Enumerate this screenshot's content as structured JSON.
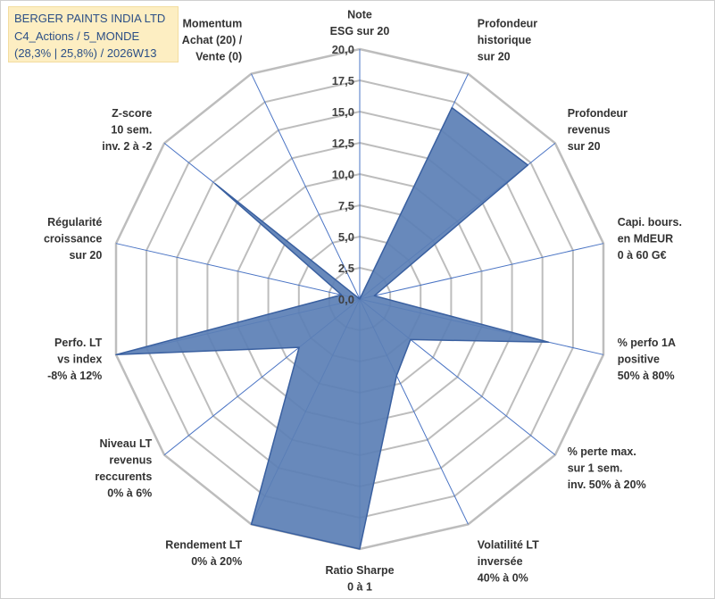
{
  "title_box": {
    "line1": "BERGER PAINTS INDIA LTD",
    "line2": "C4_Actions / 5_MONDE",
    "line3": "(28,3% | 25,8%) / 2026W13"
  },
  "colors": {
    "fill": "#5b7fb5",
    "stroke": "#3a60a0",
    "grid": "#bdbdbd",
    "spoke": "#4a74c4"
  },
  "chart_data": {
    "type": "radar",
    "title": "BERGER PAINTS INDIA LTD",
    "rmin": 0,
    "rmax": 20,
    "tick_step": 2.5,
    "tick_labels": [
      "0,0",
      "2,5",
      "5,0",
      "7,5",
      "10,0",
      "12,5",
      "15,0",
      "17,5",
      "20,0"
    ],
    "axes": [
      {
        "label": [
          "Note",
          "ESG sur 20"
        ],
        "value": 0
      },
      {
        "label": [
          "Profondeur",
          "historique",
          "sur 20"
        ],
        "value": 17
      },
      {
        "label": [
          "Profondeur",
          "revenus",
          "sur 20"
        ],
        "value": 17.2
      },
      {
        "label": [
          "Capi. bours.",
          "en MdEUR",
          "0 à 60 G€"
        ],
        "value": 1.2
      },
      {
        "label": [
          "% perfo 1A",
          "positive",
          "50% à 80%"
        ],
        "value": 15.5
      },
      {
        "label": [
          "% perte max.",
          "sur 1 sem.",
          "inv. 50% à 20%"
        ],
        "value": 5.2
      },
      {
        "label": [
          "Volatilité LT",
          "inversée",
          "40% à 0%"
        ],
        "value": 6.8
      },
      {
        "label": [
          "Ratio Sharpe",
          "0 à 1"
        ],
        "value": 20
      },
      {
        "label": [
          "Rendement LT",
          "0% à 20%"
        ],
        "value": 20
      },
      {
        "label": [
          "Niveau LT",
          "revenus",
          "reccurents",
          "0% à 6%"
        ],
        "value": 6.2
      },
      {
        "label": [
          "Perfo. LT",
          "vs index",
          "-8% à 12%"
        ],
        "value": 20
      },
      {
        "label": [
          "Régularité",
          "croissance",
          "sur 20"
        ],
        "value": 1.5
      },
      {
        "label": [
          "Z-score",
          "10 sem.",
          "inv. 2 à -2"
        ],
        "value": 14.8
      },
      {
        "label": [
          "Momentum",
          "Achat (20) /",
          "Vente (0)"
        ],
        "value": 0
      }
    ]
  }
}
